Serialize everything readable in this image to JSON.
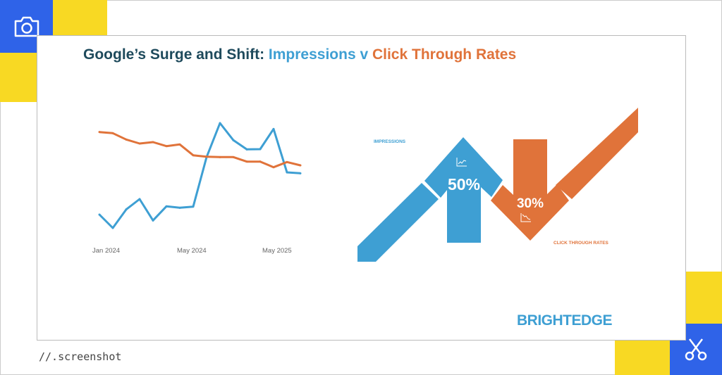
{
  "title": {
    "part1": "Google’s Surge and Shift: ",
    "part2": "Impressions v ",
    "part3": "Click Through Rates"
  },
  "colors": {
    "impressions": "#3e9fd3",
    "ctr": "#e0733a",
    "title": "#1e4a5c",
    "yellow": "#f8d923",
    "blue": "#2f63e8"
  },
  "chart_data": {
    "type": "line",
    "x_tick_labels": [
      "Jan 2024",
      "May 2024",
      "May 2025"
    ],
    "y_axis": "none (no ticks printed; values relative)",
    "grid": false,
    "series": [
      {
        "color": "#3e9fd3",
        "values": [
          17,
          5.6,
          21.4,
          30.2,
          12,
          24,
          22.8,
          23.8,
          66,
          95,
          80.4,
          72.6,
          72.8,
          90,
          53,
          52.2
        ]
      },
      {
        "color": "#e0733a",
        "values": [
          87.4,
          86.4,
          81,
          77.6,
          78.8,
          75.4,
          76.8,
          67.6,
          66.4,
          66,
          66,
          62.2,
          62.2,
          57.4,
          61.8,
          59
        ]
      }
    ]
  },
  "infographic": {
    "impressions_label": "IMPRESSIONS",
    "impressions_change": "50%",
    "ctr_label": "CLICK THROUGH RATES",
    "ctr_change": "30%"
  },
  "brand": "BRIGHTEDGE",
  "footer": "//.screenshot",
  "icons": {
    "top_left": "camera-icon",
    "bottom_right": "scissors-icon"
  }
}
